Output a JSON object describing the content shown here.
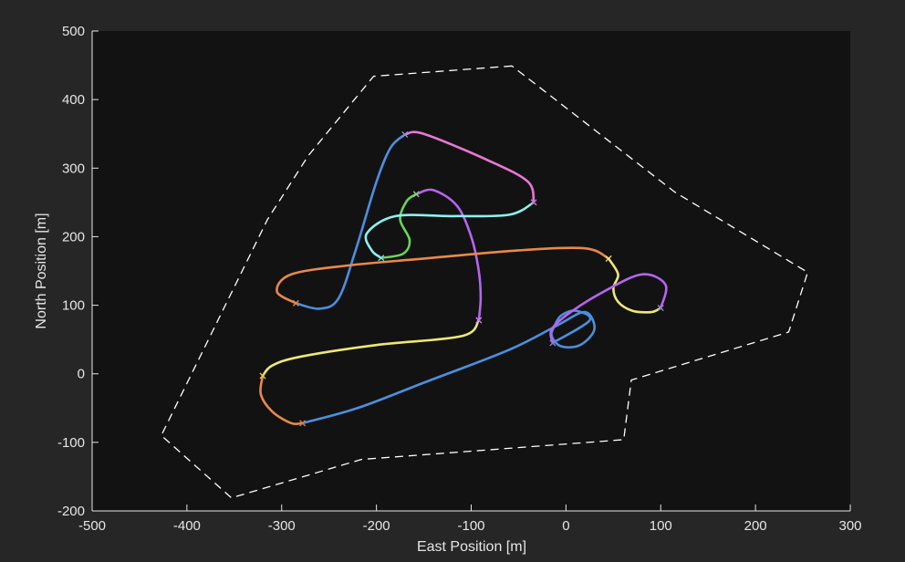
{
  "chart_data": {
    "type": "line",
    "title": "",
    "xlabel": "East Position [m]",
    "ylabel": "North Position [m]",
    "xlim": [
      -500,
      300
    ],
    "ylim": [
      -200,
      500
    ],
    "xticks": [
      -500,
      -400,
      -300,
      -200,
      -100,
      0,
      100,
      200,
      300
    ],
    "yticks": [
      -200,
      -100,
      0,
      100,
      200,
      300,
      400,
      500
    ],
    "xtick_labels": [
      "-500",
      "-400",
      "-300",
      "-200",
      "-100",
      "0",
      "100",
      "200",
      "300"
    ],
    "ytick_labels": [
      "-200",
      "-100",
      "0",
      "100",
      "200",
      "300",
      "400",
      "500"
    ],
    "grid": false,
    "colors": {
      "figure_bg": "#262626",
      "axes_bg": "#121212",
      "axis": "#e6e6e6",
      "boundary": "#ffffff"
    },
    "boundary": {
      "style": "dashed",
      "color": "#ffffff",
      "points": [
        [
          -57,
          449
        ],
        [
          -203,
          434
        ],
        [
          -272,
          318
        ],
        [
          -315,
          225
        ],
        [
          -427,
          -90
        ],
        [
          -353,
          -181
        ],
        [
          -216,
          -125
        ],
        [
          61,
          -96
        ],
        [
          69,
          -9
        ],
        [
          235,
          61
        ],
        [
          255,
          148
        ],
        [
          115,
          265
        ],
        [
          -57,
          449
        ]
      ]
    },
    "series": [
      {
        "color": "#4c8fde",
        "waypoint_color": "#7a9ed0",
        "points": [
          [
            -278,
            -72
          ],
          [
            -220,
            -50
          ],
          [
            -150,
            -13
          ],
          [
            -60,
            35
          ],
          [
            -10,
            70
          ],
          [
            20,
            90
          ],
          [
            30,
            65
          ],
          [
            15,
            42
          ],
          [
            -5,
            40
          ],
          [
            -15,
            55
          ],
          [
            -12,
            70
          ],
          [
            -5,
            85
          ],
          [
            10,
            92
          ],
          [
            25,
            78
          ],
          [
            -14,
            45
          ]
        ]
      },
      {
        "color": "#e8894a",
        "waypoint_color": "#d97a3a",
        "points": [
          [
            -320,
            -3
          ],
          [
            -322,
            -30
          ],
          [
            -310,
            -55
          ],
          [
            -290,
            -72
          ],
          [
            -278,
            -72
          ]
        ]
      },
      {
        "color": "#ede878",
        "waypoint_color": "#e8d14f",
        "points": [
          [
            -92,
            78
          ],
          [
            -110,
            55
          ],
          [
            -200,
            42
          ],
          [
            -280,
            25
          ],
          [
            -310,
            12
          ],
          [
            -320,
            -3
          ]
        ]
      },
      {
        "color": "#b565f0",
        "waypoint_color": "#c37af5",
        "points": [
          [
            -158,
            262
          ],
          [
            -140,
            268
          ],
          [
            -115,
            245
          ],
          [
            -100,
            200
          ],
          [
            -92,
            150
          ],
          [
            -90,
            110
          ],
          [
            -92,
            78
          ]
        ]
      },
      {
        "color": "#6bd45a",
        "waypoint_color": "#8fd07a",
        "points": [
          [
            -195,
            169
          ],
          [
            -172,
            175
          ],
          [
            -165,
            195
          ],
          [
            -175,
            225
          ],
          [
            -168,
            252
          ],
          [
            -158,
            262
          ]
        ]
      },
      {
        "color": "#8ef0f0",
        "waypoint_color": "#7ae0e0",
        "points": [
          [
            -34,
            250
          ],
          [
            -60,
            232
          ],
          [
            -120,
            230
          ],
          [
            -180,
            230
          ],
          [
            -210,
            205
          ],
          [
            -205,
            180
          ],
          [
            -195,
            169
          ]
        ]
      },
      {
        "color": "#e877d6",
        "waypoint_color": "#c070c0",
        "points": [
          [
            -170,
            349
          ],
          [
            -150,
            350
          ],
          [
            -80,
            310
          ],
          [
            -40,
            280
          ],
          [
            -34,
            250
          ]
        ]
      },
      {
        "color": "#4c8fde",
        "waypoint_color": "#7a9ed0",
        "points": [
          [
            -285,
            103
          ],
          [
            -260,
            95
          ],
          [
            -240,
            110
          ],
          [
            -222,
            180
          ],
          [
            -200,
            280
          ],
          [
            -185,
            330
          ],
          [
            -170,
            349
          ]
        ]
      },
      {
        "color": "#e8894a",
        "waypoint_color": "#e8894a",
        "points": [
          [
            45,
            168
          ],
          [
            20,
            183
          ],
          [
            -50,
            180
          ],
          [
            -150,
            168
          ],
          [
            -230,
            158
          ],
          [
            -290,
            145
          ],
          [
            -305,
            120
          ],
          [
            -285,
            103
          ]
        ]
      },
      {
        "color": "#ede878",
        "waypoint_color": "#ede878",
        "points": [
          [
            100,
            96
          ],
          [
            90,
            90
          ],
          [
            70,
            92
          ],
          [
            55,
            105
          ],
          [
            50,
            125
          ],
          [
            55,
            145
          ],
          [
            45,
            168
          ]
        ]
      },
      {
        "color": "#b565f0",
        "waypoint_color": "#8a7ad0",
        "points": [
          [
            -14,
            45
          ],
          [
            -15,
            65
          ],
          [
            5,
            90
          ],
          [
            40,
            120
          ],
          [
            80,
            145
          ],
          [
            105,
            130
          ],
          [
            100,
            96
          ]
        ]
      }
    ]
  }
}
